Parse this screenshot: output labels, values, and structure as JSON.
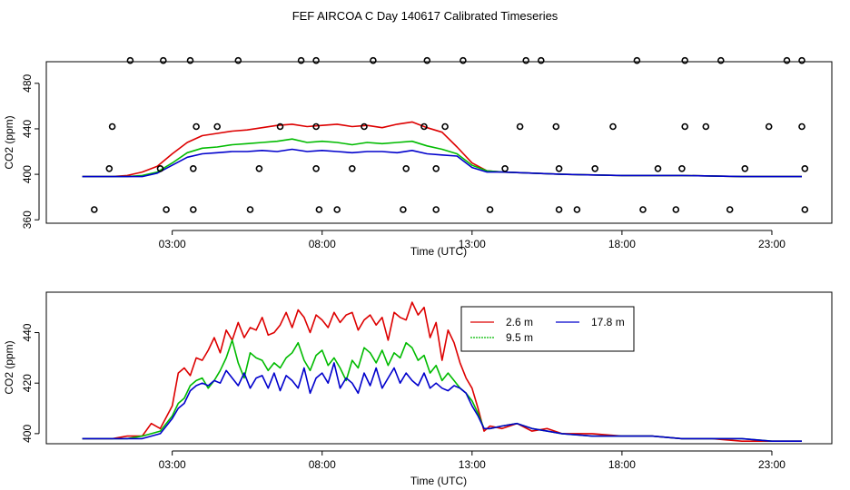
{
  "title": "FEF AIRCOA C  Day 140617  Calibrated Timeseries",
  "colors": {
    "red": "#dd0000",
    "green": "#00bb00",
    "blue": "#0000cc",
    "axis": "#000000"
  },
  "chart_data": [
    {
      "type": "line+scatter",
      "xlabel": "Time (UTC)",
      "ylabel": "CO2 (ppm)",
      "xlim": [
        -1.2,
        25.0
      ],
      "ylim": [
        357,
        499
      ],
      "xticks": [
        3,
        8,
        13,
        18,
        23
      ],
      "xtick_labels": [
        "03:00",
        "08:00",
        "13:00",
        "18:00",
        "23:00"
      ],
      "yticks": [
        360,
        400,
        440,
        480
      ],
      "ytick_labels": [
        "360",
        "400",
        "440",
        "480"
      ],
      "lines": [
        {
          "name": "2.6 m",
          "color": "#dd0000",
          "x": [
            0,
            1,
            1.5,
            2,
            2.5,
            3,
            3.5,
            4,
            4.5,
            5,
            5.5,
            6,
            6.5,
            7,
            7.5,
            8,
            8.5,
            9,
            9.5,
            10,
            10.5,
            11,
            11.5,
            12,
            12.5,
            13,
            13.5,
            14,
            15,
            16,
            18,
            20,
            22,
            24
          ],
          "y": [
            398,
            398,
            399,
            402,
            407,
            418,
            428,
            434,
            436,
            438,
            439,
            441,
            443,
            444,
            442,
            443,
            444,
            442,
            443,
            441,
            444,
            446,
            441,
            437,
            424,
            410,
            403,
            402,
            401,
            400,
            399,
            399,
            398,
            398
          ]
        },
        {
          "name": "9.5 m",
          "color": "#00bb00",
          "x": [
            0,
            1,
            1.5,
            2,
            2.5,
            3,
            3.5,
            4,
            4.5,
            5,
            5.5,
            6,
            6.5,
            7,
            7.5,
            8,
            8.5,
            9,
            9.5,
            10,
            10.5,
            11,
            11.5,
            12,
            12.5,
            13,
            13.5,
            14,
            15,
            16,
            18,
            20,
            22,
            24
          ],
          "y": [
            398,
            398,
            398,
            399,
            402,
            410,
            419,
            423,
            424,
            426,
            427,
            428,
            429,
            431,
            428,
            429,
            428,
            426,
            428,
            427,
            428,
            429,
            425,
            422,
            418,
            408,
            403,
            402,
            401,
            400,
            399,
            399,
            398,
            398
          ]
        },
        {
          "name": "17.8 m",
          "color": "#0000cc",
          "x": [
            0,
            1,
            1.5,
            2,
            2.5,
            3,
            3.5,
            4,
            4.5,
            5,
            5.5,
            6,
            6.5,
            7,
            7.5,
            8,
            8.5,
            9,
            9.5,
            10,
            10.5,
            11,
            11.5,
            12,
            12.5,
            13,
            13.5,
            14,
            15,
            16,
            18,
            20,
            22,
            24
          ],
          "y": [
            398,
            398,
            398,
            398,
            401,
            408,
            415,
            418,
            419,
            420,
            420,
            421,
            420,
            422,
            420,
            421,
            420,
            419,
            420,
            420,
            419,
            421,
            418,
            417,
            416,
            406,
            402,
            402,
            401,
            400,
            399,
            399,
            398,
            398
          ]
        }
      ],
      "points": {
        "x": [
          1.6,
          2.7,
          3.6,
          5.2,
          7.3,
          7.8,
          9.7,
          11.5,
          12.7,
          14.8,
          15.3,
          18.5,
          20.1,
          21.3,
          23.5,
          24.0,
          1.0,
          3.8,
          4.5,
          6.6,
          7.8,
          9.4,
          11.4,
          12.1,
          14.6,
          15.8,
          17.7,
          20.1,
          20.8,
          22.9,
          24.0,
          0.9,
          2.6,
          3.7,
          5.9,
          7.8,
          9.0,
          10.8,
          11.8,
          14.1,
          15.9,
          17.1,
          19.2,
          20.0,
          22.1,
          24.1,
          0.4,
          2.8,
          3.7,
          5.6,
          7.9,
          8.5,
          10.7,
          11.8,
          13.6,
          15.9,
          16.5,
          18.7,
          19.8,
          21.6,
          24.1
        ],
        "y": [
          500,
          500,
          500,
          500,
          500,
          500,
          500,
          500,
          500,
          500,
          500,
          500,
          500,
          500,
          500,
          500,
          442,
          442,
          442,
          442,
          442,
          442,
          442,
          442,
          442,
          442,
          442,
          442,
          442,
          442,
          442,
          405,
          405,
          405,
          405,
          405,
          405,
          405,
          405,
          405,
          405,
          405,
          405,
          405,
          405,
          405,
          369,
          369,
          369,
          369,
          369,
          369,
          369,
          369,
          369,
          369,
          369,
          369,
          369,
          369,
          369
        ]
      }
    },
    {
      "type": "line",
      "xlabel": "Time (UTC)",
      "ylabel": "CO2 (ppm)",
      "xlim": [
        -1.2,
        25.0
      ],
      "ylim": [
        396,
        456
      ],
      "xticks": [
        3,
        8,
        13,
        18,
        23
      ],
      "xtick_labels": [
        "03:00",
        "08:00",
        "13:00",
        "18:00",
        "23:00"
      ],
      "yticks": [
        400,
        420,
        440
      ],
      "ytick_labels": [
        "400",
        "420",
        "440"
      ],
      "legend": {
        "placement": "top-right",
        "entries": [
          {
            "name": "2.6 m",
            "color": "#dd0000"
          },
          {
            "name": "17.8 m",
            "color": "#0000cc"
          },
          {
            "name": "9.5 m",
            "color": "#00bb00"
          }
        ]
      },
      "series": [
        {
          "name": "2.6 m",
          "color": "#dd0000",
          "x": [
            0,
            0.5,
            1,
            1.5,
            2,
            2.3,
            2.6,
            3,
            3.2,
            3.4,
            3.6,
            3.8,
            4,
            4.2,
            4.4,
            4.6,
            4.8,
            5,
            5.2,
            5.4,
            5.6,
            5.8,
            6,
            6.2,
            6.4,
            6.6,
            6.8,
            7,
            7.2,
            7.4,
            7.6,
            7.8,
            8,
            8.2,
            8.4,
            8.6,
            8.8,
            9,
            9.2,
            9.4,
            9.6,
            9.8,
            10,
            10.2,
            10.4,
            10.6,
            10.8,
            11,
            11.2,
            11.4,
            11.6,
            11.8,
            12,
            12.2,
            12.4,
            12.6,
            12.8,
            13,
            13.2,
            13.4,
            13.6,
            14,
            14.5,
            15,
            15.5,
            16,
            17,
            18,
            19,
            20,
            21,
            22,
            23,
            24
          ],
          "y": [
            398,
            398,
            398,
            399,
            399,
            404,
            402,
            411,
            424,
            426,
            423,
            430,
            429,
            433,
            438,
            432,
            441,
            437,
            444,
            438,
            442,
            441,
            446,
            439,
            440,
            443,
            448,
            442,
            449,
            446,
            440,
            447,
            445,
            442,
            448,
            444,
            447,
            448,
            441,
            445,
            447,
            443,
            446,
            437,
            448,
            446,
            445,
            452,
            447,
            450,
            438,
            444,
            429,
            441,
            436,
            428,
            422,
            418,
            410,
            401,
            403,
            402,
            404,
            401,
            402,
            400,
            400,
            399,
            399,
            398,
            398,
            397,
            397,
            397
          ]
        },
        {
          "name": "9.5 m",
          "color": "#00bb00",
          "x": [
            0,
            0.5,
            1,
            1.5,
            2,
            2.3,
            2.6,
            3,
            3.2,
            3.4,
            3.6,
            3.8,
            4,
            4.2,
            4.4,
            4.6,
            4.8,
            5,
            5.2,
            5.4,
            5.6,
            5.8,
            6,
            6.2,
            6.4,
            6.6,
            6.8,
            7,
            7.2,
            7.4,
            7.6,
            7.8,
            8,
            8.2,
            8.4,
            8.6,
            8.8,
            9,
            9.2,
            9.4,
            9.6,
            9.8,
            10,
            10.2,
            10.4,
            10.6,
            10.8,
            11,
            11.2,
            11.4,
            11.6,
            11.8,
            12,
            12.2,
            12.4,
            12.6,
            12.8,
            13,
            13.2,
            13.4,
            13.6,
            14,
            14.5,
            15,
            15.5,
            16,
            17,
            18,
            19,
            20,
            21,
            22,
            23,
            24
          ],
          "y": [
            398,
            398,
            398,
            398,
            399,
            400,
            401,
            407,
            412,
            414,
            419,
            421,
            422,
            418,
            421,
            425,
            430,
            437,
            428,
            422,
            432,
            430,
            429,
            425,
            428,
            426,
            430,
            432,
            436,
            429,
            425,
            431,
            433,
            427,
            430,
            426,
            421,
            429,
            426,
            434,
            432,
            428,
            433,
            427,
            432,
            430,
            436,
            434,
            429,
            431,
            424,
            427,
            421,
            424,
            421,
            418,
            416,
            413,
            408,
            402,
            402,
            403,
            404,
            402,
            401,
            400,
            399,
            399,
            399,
            398,
            398,
            398,
            397,
            397
          ]
        },
        {
          "name": "17.8 m",
          "color": "#0000cc",
          "x": [
            0,
            0.5,
            1,
            1.5,
            2,
            2.3,
            2.6,
            3,
            3.2,
            3.4,
            3.6,
            3.8,
            4,
            4.2,
            4.4,
            4.6,
            4.8,
            5,
            5.2,
            5.4,
            5.6,
            5.8,
            6,
            6.2,
            6.4,
            6.6,
            6.8,
            7,
            7.2,
            7.4,
            7.6,
            7.8,
            8,
            8.2,
            8.4,
            8.6,
            8.8,
            9,
            9.2,
            9.4,
            9.6,
            9.8,
            10,
            10.2,
            10.4,
            10.6,
            10.8,
            11,
            11.2,
            11.4,
            11.6,
            11.8,
            12,
            12.2,
            12.4,
            12.6,
            12.8,
            13,
            13.2,
            13.4,
            13.6,
            14,
            14.5,
            15,
            15.5,
            16,
            17,
            18,
            19,
            20,
            21,
            22,
            23,
            24
          ],
          "y": [
            398,
            398,
            398,
            398,
            398,
            399,
            400,
            406,
            410,
            412,
            417,
            419,
            420,
            419,
            421,
            420,
            425,
            422,
            419,
            424,
            418,
            422,
            423,
            418,
            424,
            417,
            423,
            421,
            418,
            426,
            416,
            422,
            424,
            420,
            428,
            418,
            422,
            420,
            416,
            424,
            419,
            426,
            418,
            422,
            426,
            420,
            424,
            421,
            419,
            424,
            418,
            420,
            418,
            417,
            419,
            418,
            416,
            411,
            407,
            402,
            402,
            403,
            404,
            402,
            401,
            400,
            399,
            399,
            399,
            398,
            398,
            398,
            397,
            397
          ]
        }
      ]
    }
  ]
}
